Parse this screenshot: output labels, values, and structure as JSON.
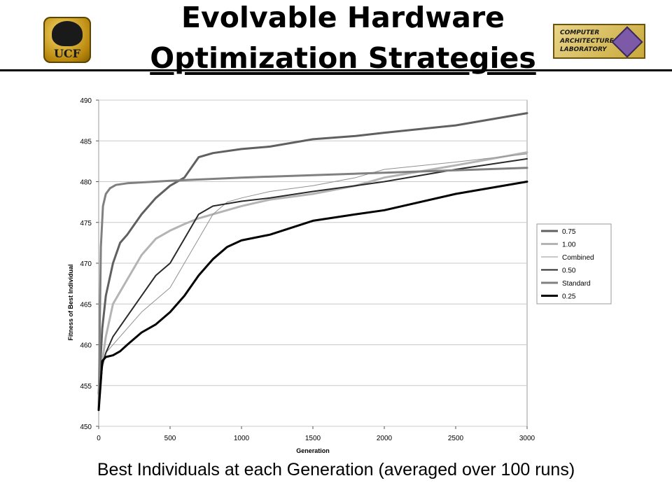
{
  "slide": {
    "title_line1": "Evolvable Hardware",
    "title_line2": "Optimization Strategies",
    "caption": "Best Individuals at each Generation (averaged over 100 runs)"
  },
  "logos": {
    "ucf": {
      "name": "ucf-pegasus-logo",
      "text": "UCF"
    },
    "lab": {
      "name": "computer-architecture-laboratory-logo",
      "text": [
        "COMPUTER",
        "ARCHITECTURE",
        "LABORATORY"
      ]
    }
  },
  "chart_data": {
    "type": "line",
    "title": "",
    "xlabel": "Generation",
    "ylabel": "Fitness of Best Individual",
    "xlim": [
      0,
      3000
    ],
    "ylim": [
      450,
      490
    ],
    "xticks": [
      0,
      500,
      1000,
      1500,
      2000,
      2500,
      3000
    ],
    "yticks": [
      450,
      455,
      460,
      465,
      470,
      475,
      480,
      485,
      490
    ],
    "grid": "horizontal",
    "legend_position": "right",
    "series": [
      {
        "name": "0.75",
        "color": "#606060",
        "width": 3,
        "x": [
          0,
          25,
          50,
          100,
          150,
          200,
          300,
          400,
          500,
          600,
          700,
          800,
          1000,
          1200,
          1500,
          1800,
          2000,
          2500,
          3000
        ],
        "y": [
          454,
          462,
          466,
          470,
          472.5,
          473.5,
          476,
          478,
          479.5,
          480.5,
          483,
          483.5,
          484,
          484.3,
          485.2,
          485.6,
          486,
          486.9,
          488.4
        ]
      },
      {
        "name": "1.00",
        "color": "#b4b4b4",
        "width": 3,
        "x": [
          0,
          25,
          50,
          100,
          200,
          300,
          400,
          500,
          600,
          700,
          800,
          1000,
          1200,
          1500,
          1800,
          2000,
          2500,
          3000
        ],
        "y": [
          452,
          458,
          461,
          465,
          468,
          471,
          473,
          474,
          474.8,
          475.5,
          476,
          477,
          477.8,
          478.5,
          479.5,
          480.5,
          482,
          483.6
        ]
      },
      {
        "name": "Combined",
        "color": "#909090",
        "width": 1,
        "x": [
          0,
          25,
          50,
          100,
          200,
          300,
          400,
          500,
          600,
          700,
          800,
          900,
          1000,
          1200,
          1500,
          1800,
          2000,
          2500,
          3000
        ],
        "y": [
          452,
          457,
          459,
          460,
          462,
          464,
          465.5,
          467,
          470,
          473,
          476,
          477.5,
          478,
          478.8,
          479.5,
          480.5,
          481.5,
          482.4,
          483.4
        ]
      },
      {
        "name": "0.50",
        "color": "#2a2a2a",
        "width": 2,
        "x": [
          0,
          25,
          50,
          100,
          200,
          300,
          400,
          500,
          600,
          700,
          800,
          1000,
          1200,
          1500,
          1800,
          2000,
          2500,
          3000
        ],
        "y": [
          452,
          457.5,
          459,
          461,
          463.5,
          466,
          468.5,
          470,
          473,
          476,
          477,
          477.6,
          478,
          478.8,
          479.5,
          480,
          481.5,
          482.8
        ]
      },
      {
        "name": "Standard",
        "color": "#808080",
        "width": 3,
        "x": [
          0,
          15,
          30,
          50,
          80,
          120,
          200,
          500,
          1000,
          1500,
          2000,
          2500,
          3000
        ],
        "y": [
          452,
          472,
          477,
          478.5,
          479.2,
          479.6,
          479.8,
          480.1,
          480.5,
          480.8,
          481.1,
          481.4,
          481.7
        ]
      },
      {
        "name": "0.25",
        "color": "#000000",
        "width": 3,
        "x": [
          0,
          25,
          50,
          100,
          150,
          200,
          300,
          400,
          500,
          600,
          700,
          800,
          900,
          1000,
          1200,
          1500,
          1800,
          2000,
          2500,
          3000
        ],
        "y": [
          452,
          458,
          458.5,
          458.7,
          459.2,
          460,
          461.5,
          462.5,
          464,
          466,
          468.5,
          470.5,
          472,
          472.8,
          473.5,
          475.2,
          476,
          476.5,
          478.5,
          480
        ]
      }
    ]
  }
}
